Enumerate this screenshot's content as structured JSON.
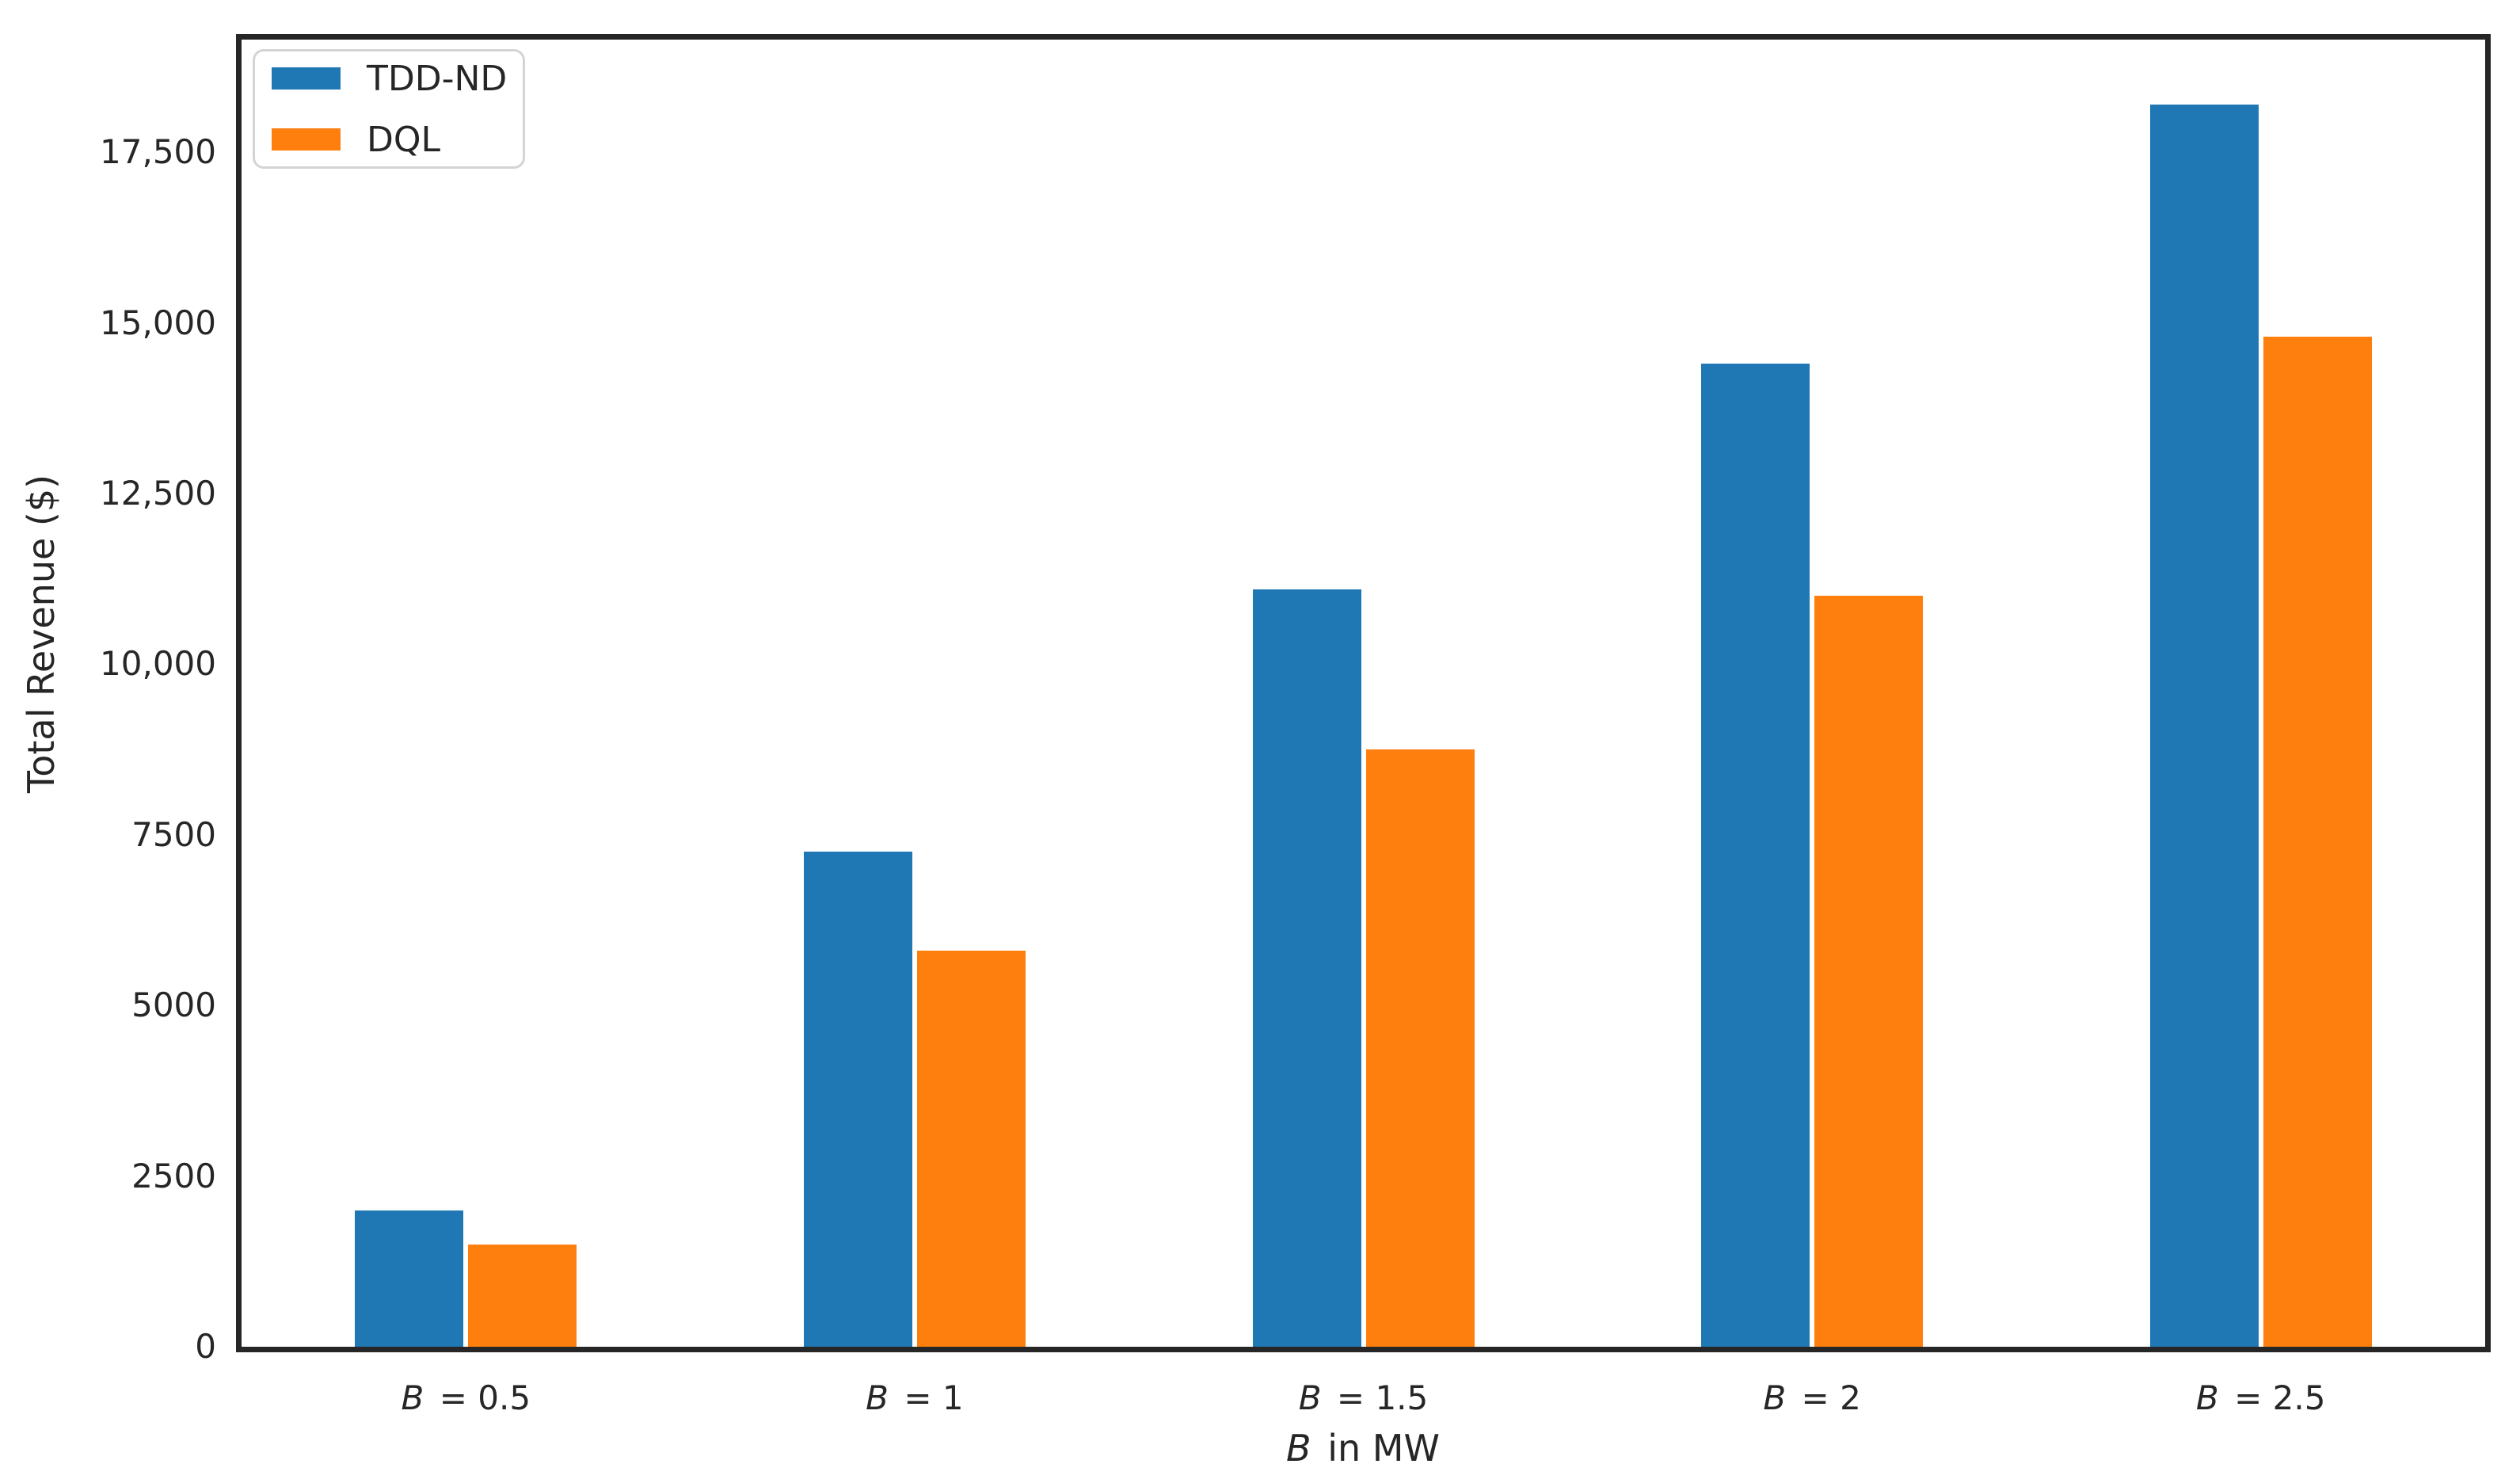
{
  "chart_data": {
    "type": "bar",
    "categories": [
      "B = 0.5",
      "B = 1",
      "B = 1.5",
      "B = 2",
      "B = 2.5"
    ],
    "series": [
      {
        "name": "TDD-ND",
        "color": "#1f77b4",
        "values": [
          2000,
          7250,
          11100,
          14400,
          18200
        ]
      },
      {
        "name": "DQL",
        "color": "#ff7f0e",
        "values": [
          1500,
          5800,
          8750,
          11000,
          14800
        ]
      }
    ],
    "title": "",
    "xlabel": "B in MW",
    "xlabel_italic": "B",
    "xlabel_rest": " in MW",
    "ylabel": "Total Revenue ($)",
    "ylim": [
      0,
      19150
    ],
    "yticks": {
      "values": [
        0,
        2500,
        5000,
        7500,
        10000,
        12500,
        15000,
        17500
      ],
      "labels": [
        "0",
        "2500",
        "5000",
        "7500",
        "10,000",
        "12,500",
        "15,000",
        "17,500"
      ]
    },
    "grid": false,
    "legend": {
      "position": "upper left",
      "entries": [
        "TDD-ND",
        "DQL"
      ]
    }
  },
  "styles": {
    "background": "#ffffff",
    "axis_color": "#262626",
    "text_color": "#262626",
    "legend_border_color": "#d4d4d4",
    "series_colors": [
      "#1f77b4",
      "#ff7f0e"
    ]
  }
}
